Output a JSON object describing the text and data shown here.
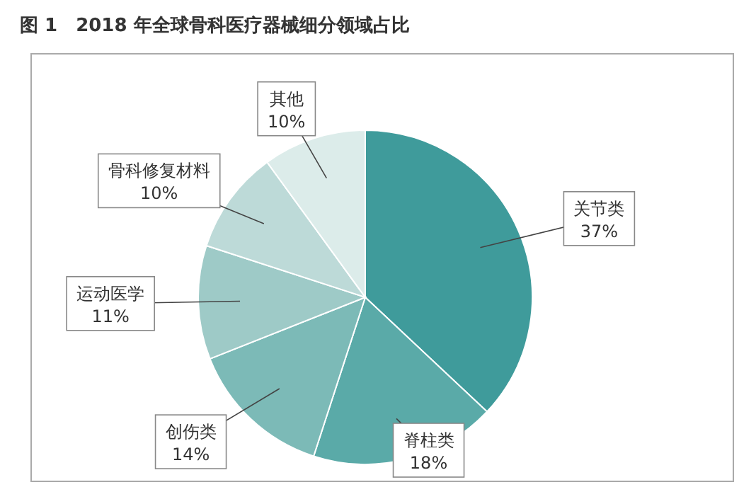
{
  "chart_data": {
    "type": "pie",
    "title": "图 1　2018 年全球骨科医疗器械细分领域占比",
    "categories": [
      "关节类",
      "脊柱类",
      "创伤类",
      "运动医学",
      "骨科修复材料",
      "其他"
    ],
    "values": [
      37,
      18,
      14,
      11,
      10,
      10
    ],
    "value_labels": [
      "37%",
      "18%",
      "14%",
      "11%",
      "10%",
      "10%"
    ],
    "colors": [
      "#3f9b9b",
      "#5aaaa8",
      "#7cbab7",
      "#9ecac7",
      "#bddad8",
      "#dcecea"
    ]
  }
}
